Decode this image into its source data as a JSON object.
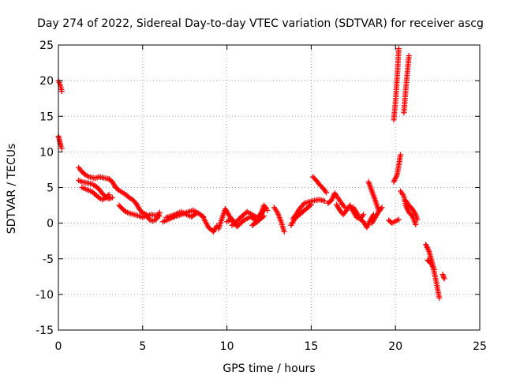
{
  "chart_data": {
    "type": "scatter",
    "title": "Day 274 of 2022, Sidereal Day-to-day VTEC variation (SDTVAR) for receiver ascg",
    "xlabel": "GPS time / hours",
    "ylabel": "SDTVAR / TECUs",
    "xlim": [
      0,
      25
    ],
    "ylim": [
      -15,
      25
    ],
    "xticks": [
      0,
      5,
      10,
      15,
      20,
      25
    ],
    "yticks": [
      -15,
      -10,
      -5,
      0,
      5,
      10,
      15,
      20,
      25
    ],
    "xtick_labels": [
      "0",
      "5",
      "10",
      "15",
      "20",
      "25"
    ],
    "ytick_labels": [
      "-15",
      "-10",
      "-5",
      "0",
      "5",
      "10",
      "15",
      "20",
      "25"
    ],
    "grid": true,
    "marker": "+",
    "series_color": "#ff0000",
    "segments": [
      {
        "x": [
          0.0,
          0.1,
          0.15,
          0.2
        ],
        "y": [
          20.0,
          19.5,
          19.0,
          18.5
        ]
      },
      {
        "x": [
          0.0,
          0.05,
          0.1,
          0.15,
          0.2
        ],
        "y": [
          12.2,
          11.8,
          11.2,
          10.8,
          10.5
        ]
      },
      {
        "x": [
          1.2,
          1.4,
          1.6,
          1.8,
          2.0,
          2.2,
          2.4,
          2.6,
          2.8,
          3.0
        ],
        "y": [
          7.8,
          7.2,
          6.8,
          6.5,
          6.4,
          6.3,
          6.5,
          6.4,
          6.3,
          6.2
        ]
      },
      {
        "x": [
          1.2,
          1.4,
          1.6,
          1.8,
          2.0,
          2.2,
          2.4,
          2.6,
          2.8,
          3.0,
          3.2
        ],
        "y": [
          6.0,
          5.8,
          5.7,
          5.6,
          5.5,
          5.2,
          4.8,
          4.2,
          3.7,
          3.4,
          3.6
        ]
      },
      {
        "x": [
          1.4,
          1.6,
          1.8,
          2.0,
          2.2,
          2.4,
          2.6,
          2.8,
          3.0
        ],
        "y": [
          5.0,
          4.8,
          4.6,
          4.4,
          4.0,
          3.6,
          3.3,
          3.5,
          4.0
        ]
      },
      {
        "x": [
          3.0,
          3.2,
          3.4,
          3.6,
          3.8,
          4.0,
          4.2,
          4.4,
          4.6,
          4.8,
          5.0
        ],
        "y": [
          6.2,
          5.8,
          5.0,
          4.6,
          4.3,
          4.0,
          3.6,
          3.3,
          2.8,
          2.0,
          1.4
        ]
      },
      {
        "x": [
          3.6,
          3.8,
          4.0,
          4.2,
          4.5,
          4.8,
          5.0,
          5.2,
          5.5,
          5.8,
          6.0
        ],
        "y": [
          2.5,
          2.0,
          1.6,
          1.4,
          1.2,
          1.0,
          0.8,
          1.0,
          1.2,
          1.1,
          1.0
        ]
      },
      {
        "x": [
          5.0,
          5.2,
          5.4,
          5.6,
          5.8,
          6.0
        ],
        "y": [
          1.5,
          1.2,
          0.5,
          0.3,
          0.5,
          1.5
        ]
      },
      {
        "x": [
          6.2,
          6.5,
          6.8,
          7.0,
          7.3,
          7.6,
          8.0,
          8.3,
          8.6
        ],
        "y": [
          0.2,
          0.5,
          0.8,
          1.0,
          1.2,
          1.5,
          1.8,
          1.4,
          0.9
        ]
      },
      {
        "x": [
          6.4,
          6.7,
          7.0,
          7.3,
          7.6,
          7.9,
          8.2
        ],
        "y": [
          0.8,
          1.0,
          1.3,
          1.6,
          1.2,
          0.9,
          1.4
        ]
      },
      {
        "x": [
          8.6,
          8.9,
          9.2,
          9.4
        ],
        "y": [
          0.8,
          -0.6,
          -1.2,
          -0.4
        ]
      },
      {
        "x": [
          9.5,
          9.7,
          9.9,
          10.1,
          10.3
        ],
        "y": [
          -0.8,
          0.6,
          2.0,
          1.2,
          0.3
        ]
      },
      {
        "x": [
          10.3,
          10.6,
          10.9,
          11.2,
          11.5,
          11.8,
          12.1,
          12.3
        ],
        "y": [
          -0.3,
          0.3,
          1.0,
          1.6,
          1.2,
          0.8,
          1.5,
          2.2
        ]
      },
      {
        "x": [
          10.0,
          10.3,
          10.6,
          11.0,
          11.4,
          11.8,
          12.2
        ],
        "y": [
          0.2,
          0.6,
          -0.5,
          0.4,
          0.9,
          0.2,
          1.0
        ]
      },
      {
        "x": [
          11.5,
          11.8,
          12.0,
          12.2,
          12.4
        ],
        "y": [
          -0.3,
          0.2,
          1.2,
          2.5,
          1.8
        ]
      },
      {
        "x": [
          12.8,
          13.0,
          13.2,
          13.4
        ],
        "y": [
          2.2,
          1.5,
          0.3,
          -1.2
        ]
      },
      {
        "x": [
          13.8,
          14.0,
          14.2,
          14.4,
          14.6,
          14.8,
          15.0
        ],
        "y": [
          -0.3,
          0.5,
          1.0,
          1.4,
          1.8,
          2.2,
          2.6
        ]
      },
      {
        "x": [
          13.9,
          14.1,
          14.3,
          14.6,
          14.9,
          15.2,
          15.5,
          15.8
        ],
        "y": [
          0.6,
          1.2,
          2.0,
          2.8,
          3.0,
          3.2,
          3.3,
          3.1
        ]
      },
      {
        "x": [
          15.1,
          15.3,
          15.5,
          15.7,
          15.9
        ],
        "y": [
          6.5,
          6.0,
          5.4,
          4.9,
          4.3
        ]
      },
      {
        "x": [
          16.0,
          16.2,
          16.4,
          16.6,
          16.8,
          17.0
        ],
        "y": [
          2.8,
          3.2,
          4.2,
          3.5,
          2.8,
          2.2
        ]
      },
      {
        "x": [
          16.5,
          16.7,
          16.9,
          17.1,
          17.3,
          17.5,
          17.7,
          17.9,
          18.1
        ],
        "y": [
          2.6,
          1.8,
          1.2,
          1.8,
          2.5,
          1.6,
          0.8,
          0.6,
          1.2
        ]
      },
      {
        "x": [
          17.5,
          17.7,
          17.9,
          18.1,
          18.3,
          18.5,
          18.7
        ],
        "y": [
          2.2,
          1.5,
          0.6,
          0.2,
          -0.6,
          0.4,
          1.2
        ]
      },
      {
        "x": [
          18.4,
          18.6,
          18.8,
          19.0
        ],
        "y": [
          5.8,
          4.5,
          3.2,
          1.8
        ]
      },
      {
        "x": [
          18.6,
          18.8,
          19.0,
          19.2
        ],
        "y": [
          0.0,
          0.8,
          1.6,
          2.2
        ]
      },
      {
        "x": [
          19.6,
          19.8,
          20.0,
          20.2
        ],
        "y": [
          0.4,
          0.0,
          0.3,
          0.5
        ]
      },
      {
        "x": [
          19.9,
          20.0,
          20.1,
          20.2
        ],
        "y": [
          14.5,
          17.0,
          20.5,
          24.5
        ]
      },
      {
        "x": [
          20.5,
          20.6,
          20.7,
          20.8
        ],
        "y": [
          15.5,
          18.5,
          21.0,
          23.5
        ]
      },
      {
        "x": [
          19.9,
          20.1,
          20.2,
          20.3
        ],
        "y": [
          5.8,
          6.8,
          8.2,
          9.6
        ]
      },
      {
        "x": [
          20.3,
          20.5,
          20.6,
          20.8,
          21.0,
          21.2
        ],
        "y": [
          4.5,
          3.8,
          2.5,
          1.5,
          1.0,
          -0.2
        ]
      },
      {
        "x": [
          20.6,
          20.8,
          21.0,
          21.2,
          21.3
        ],
        "y": [
          3.2,
          2.5,
          2.0,
          1.2,
          0.5
        ]
      },
      {
        "x": [
          21.8,
          22.0,
          22.2,
          22.4,
          22.6
        ],
        "y": [
          -3.0,
          -4.0,
          -5.8,
          -8.0,
          -10.5
        ]
      },
      {
        "x": [
          21.9,
          22.1,
          22.3
        ],
        "y": [
          -5.2,
          -5.6,
          -6.5
        ]
      },
      {
        "x": [
          22.8,
          22.9
        ],
        "y": [
          -7.2,
          -7.8
        ]
      }
    ]
  }
}
